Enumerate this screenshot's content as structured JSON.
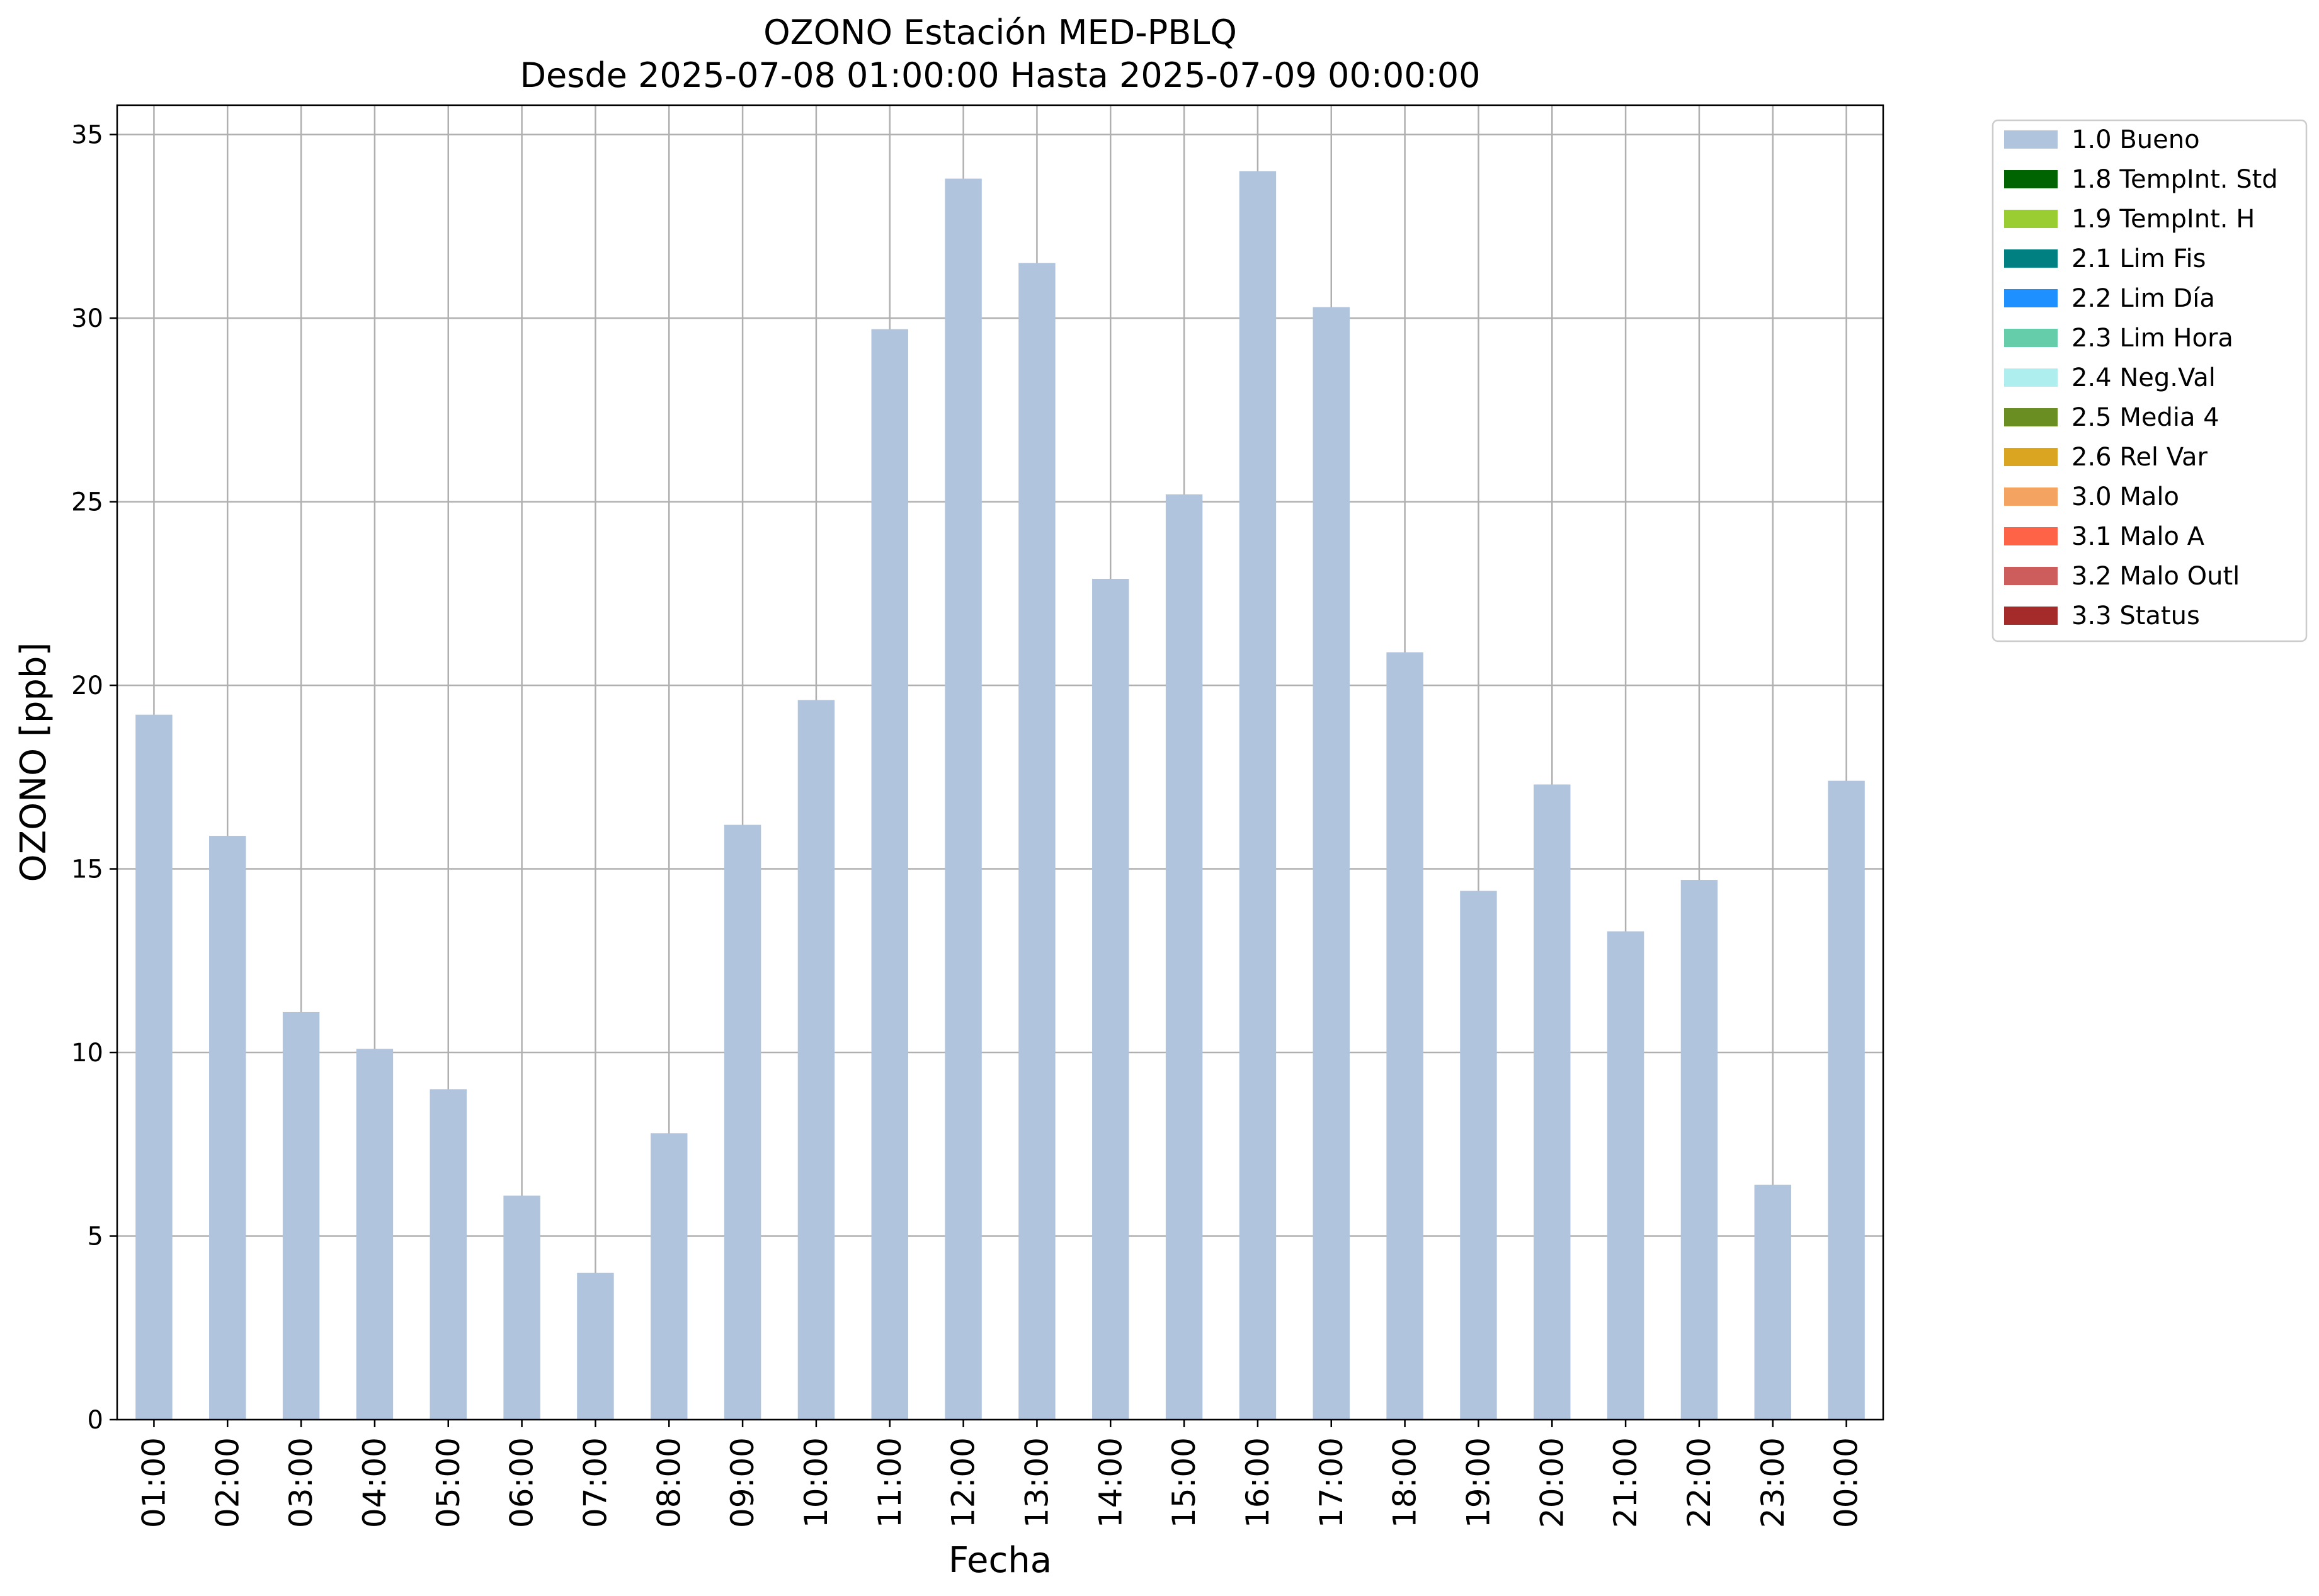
{
  "chart_data": {
    "type": "bar",
    "title": "OZONO Estación MED-PBLQ",
    "subtitle": "Desde 2025-07-08 01:00:00 Hasta 2025-07-09 00:00:00",
    "xlabel": "Fecha",
    "ylabel": "OZONO [ppb]",
    "ylim": [
      0,
      35.8
    ],
    "yticks": [
      0,
      5,
      10,
      15,
      20,
      25,
      30,
      35
    ],
    "grid": true,
    "legend_position": "outside top-right",
    "categories": [
      "01:00",
      "02:00",
      "03:00",
      "04:00",
      "05:00",
      "06:00",
      "07:00",
      "08:00",
      "09:00",
      "10:00",
      "11:00",
      "12:00",
      "13:00",
      "14:00",
      "15:00",
      "16:00",
      "17:00",
      "18:00",
      "19:00",
      "20:00",
      "21:00",
      "22:00",
      "23:00",
      "00:00"
    ],
    "series": [
      {
        "name": "1.0 Bueno",
        "color": "#b0c4de",
        "values": [
          19.2,
          15.9,
          11.1,
          10.1,
          9.0,
          6.1,
          4.0,
          7.8,
          16.2,
          19.6,
          29.7,
          33.8,
          31.5,
          22.9,
          25.2,
          34.0,
          30.3,
          20.9,
          14.4,
          17.3,
          13.3,
          14.7,
          6.4,
          17.4
        ]
      }
    ],
    "legend": [
      {
        "label": "1.0 Bueno",
        "color": "#b0c4de"
      },
      {
        "label": "1.8 TempInt. Std",
        "color": "#006400"
      },
      {
        "label": "1.9 TempInt. H",
        "color": "#9acd32"
      },
      {
        "label": "2.1 Lim Fis",
        "color": "#008080"
      },
      {
        "label": "2.2 Lim Día",
        "color": "#1e90ff"
      },
      {
        "label": "2.3 Lim Hora",
        "color": "#66cdaa"
      },
      {
        "label": "2.4 Neg.Val",
        "color": "#afeeee"
      },
      {
        "label": "2.5 Media 4",
        "color": "#6b8e23"
      },
      {
        "label": "2.6 Rel Var",
        "color": "#daa520"
      },
      {
        "label": "3.0 Malo",
        "color": "#f4a460"
      },
      {
        "label": "3.1 Malo A",
        "color": "#ff6347"
      },
      {
        "label": "3.2 Malo Outl",
        "color": "#cd5c5c"
      },
      {
        "label": "3.3 Status",
        "color": "#a52a2a"
      }
    ]
  }
}
